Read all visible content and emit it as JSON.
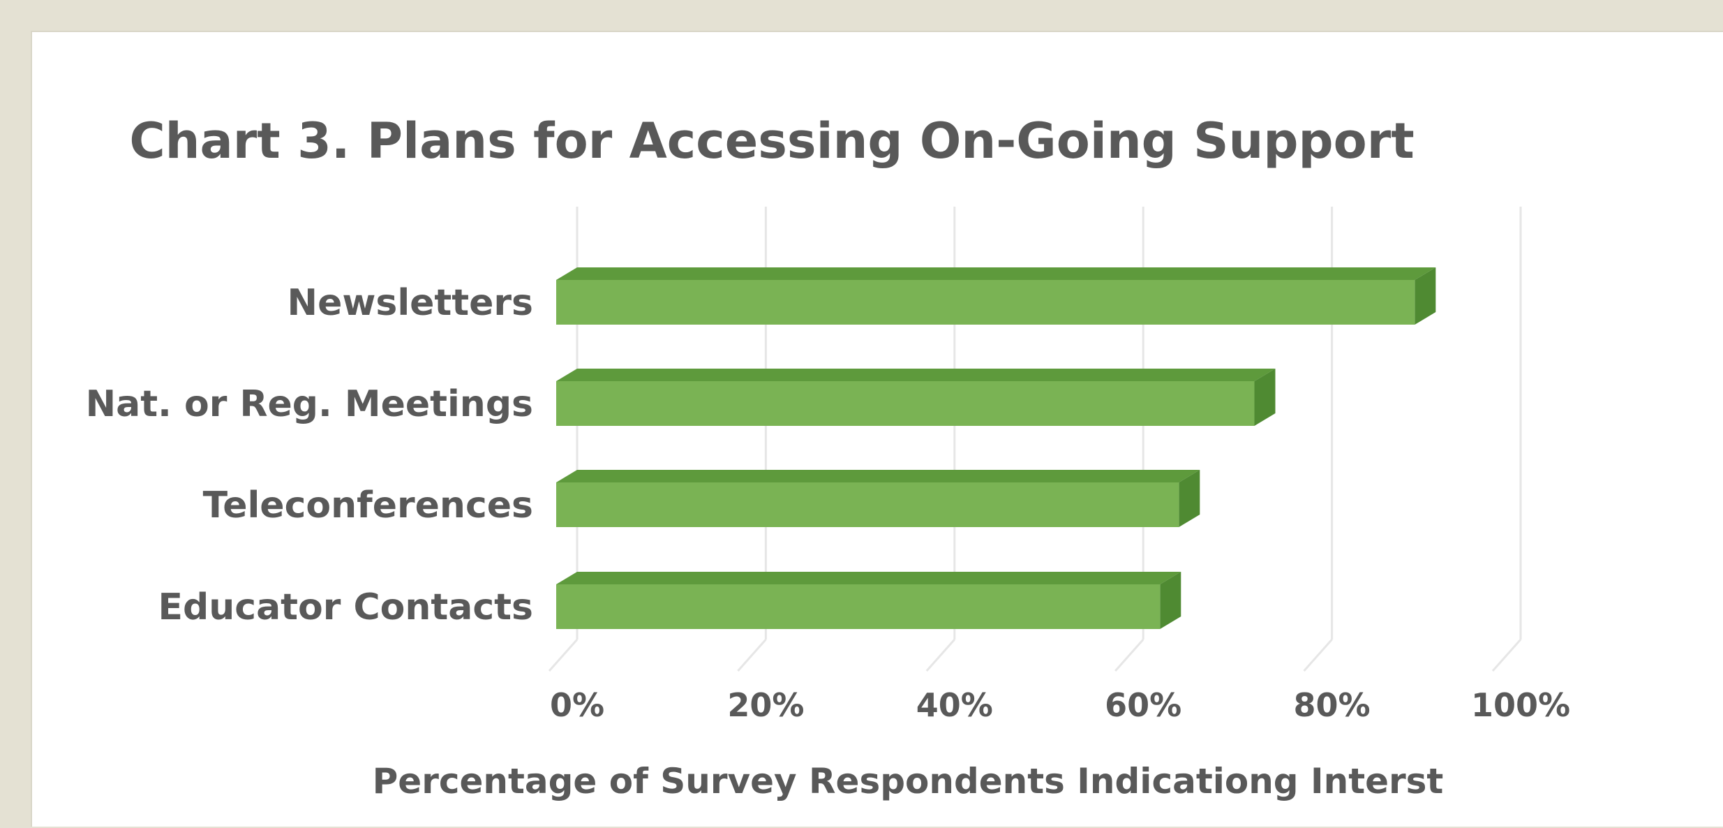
{
  "chart_data": {
    "type": "bar",
    "orientation": "horizontal",
    "title": "Chart 3. Plans for Accessing On-Going Support",
    "xlabel": "Percentage of Survey Respondents Indicationg Interst",
    "ylabel": "",
    "categories": [
      "Newsletters",
      "Nat. or Reg. Meetings",
      "Teleconferences",
      "Educator Contacts"
    ],
    "values": [
      91,
      74,
      66,
      64
    ],
    "xlim": [
      0,
      100
    ],
    "tick_labels": [
      "0%",
      "20%",
      "40%",
      "60%",
      "80%",
      "100%"
    ],
    "grid": true,
    "legend": "none",
    "bar_style": "3d",
    "colors": {
      "bar": "#7ab354",
      "bar_top": "#5e9a3c",
      "bar_side": "#4f8a32",
      "gridline": "#e6e6e6",
      "text": "#595959",
      "background": "#e4e1d3",
      "panel": "#ffffff"
    }
  }
}
